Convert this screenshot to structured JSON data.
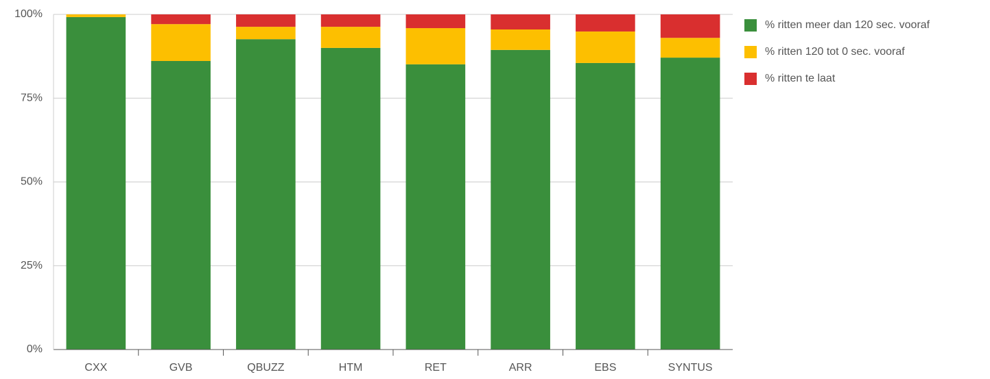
{
  "chart_data": {
    "type": "stacked_bar",
    "categories": [
      "CXX",
      "GVB",
      "QBUZZ",
      "HTM",
      "RET",
      "ARR",
      "EBS",
      "SYNTUS"
    ],
    "series": [
      {
        "name": "% ritten meer dan 120 sec. vooraf",
        "color": "#3a8f3c",
        "values": [
          99.2,
          86.1,
          92.6,
          90.0,
          85.1,
          89.4,
          85.5,
          87.1
        ]
      },
      {
        "name": "% ritten 120 tot 0 sec. vooraf",
        "color": "#fdbf00",
        "values": [
          0.8,
          11.0,
          3.7,
          6.3,
          10.8,
          6.1,
          9.4,
          5.9
        ]
      },
      {
        "name": "% ritten te laat",
        "color": "#d92f2f",
        "values": [
          0,
          2.9,
          3.7,
          3.7,
          4.1,
          4.5,
          5.1,
          7.0
        ]
      }
    ],
    "ylim": [
      0,
      100
    ],
    "yticks": [
      {
        "value": 0,
        "label": "0%"
      },
      {
        "value": 25,
        "label": "25%"
      },
      {
        "value": 50,
        "label": "50%"
      },
      {
        "value": 75,
        "label": "75%"
      },
      {
        "value": 100,
        "label": "100%"
      }
    ],
    "grid": true,
    "legend": "right"
  }
}
